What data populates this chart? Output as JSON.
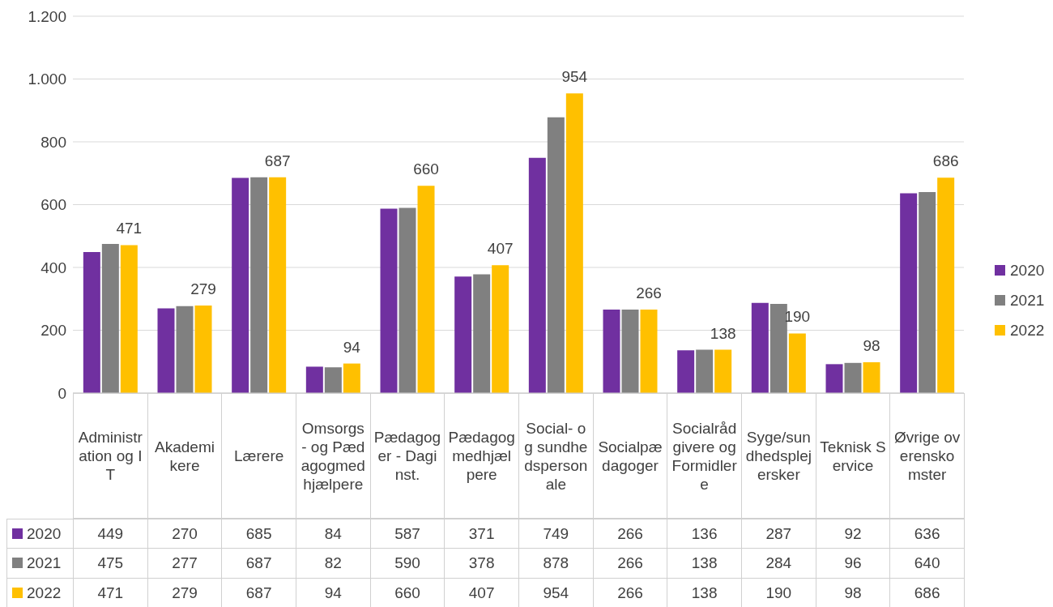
{
  "chart_data": {
    "type": "bar",
    "categories": [
      "Administration og IT",
      "Akademikere",
      "Lærere",
      "Omsorgs- og Pædagogmedhjælpere",
      "Pædagoger - Daginst.",
      "Pædagogmedhjælpere",
      "Social- og sundhedspersonale",
      "Socialpædagoger",
      "Socialrådgivere og Formidlere",
      "Syge/sundhedsplejersker",
      "Teknisk Service",
      "Øvrige overenskomster"
    ],
    "series": [
      {
        "name": "2020",
        "color": "#7030a0",
        "values": [
          449,
          270,
          685,
          84,
          587,
          371,
          749,
          266,
          136,
          287,
          92,
          636
        ]
      },
      {
        "name": "2021",
        "color": "#808080",
        "values": [
          475,
          277,
          687,
          82,
          590,
          378,
          878,
          266,
          138,
          284,
          96,
          640
        ]
      },
      {
        "name": "2022",
        "color": "#ffc000",
        "values": [
          471,
          279,
          687,
          94,
          660,
          407,
          954,
          266,
          138,
          190,
          98,
          686
        ],
        "value_labels": [
          "471",
          "279",
          "687",
          "94",
          "660",
          "407",
          "954",
          "266",
          "138",
          "190",
          "98",
          "686"
        ]
      }
    ],
    "ylim": [
      0,
      1200
    ],
    "yticks": [
      0,
      200,
      400,
      600,
      800,
      {
        "value": 1000,
        "label": "1.000"
      },
      {
        "value": 1200,
        "label": "1.200"
      }
    ],
    "grid": "y",
    "legend": "right",
    "data_labels": true
  }
}
